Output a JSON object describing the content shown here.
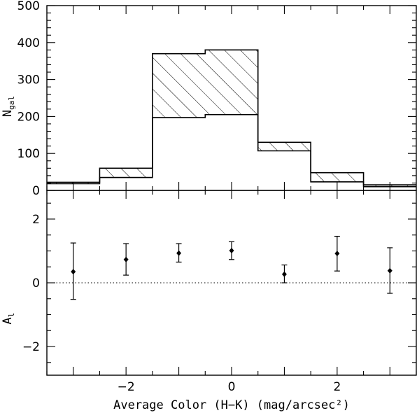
{
  "chart_data": [
    {
      "type": "bar",
      "panel": "top",
      "ylabel": "N",
      "ylabel_sub": "gal",
      "xlim": [
        -3.5,
        3.5
      ],
      "ylim": [
        0,
        500
      ],
      "yticks": [
        0,
        100,
        200,
        300,
        400,
        500
      ],
      "yticks_labeled": true,
      "xticks_labeled": false,
      "series": [
        {
          "style": "open-step",
          "bins": [
            {
              "x0": -3.5,
              "x1": -2.5,
              "value": 18
            },
            {
              "x0": -2.5,
              "x1": -1.5,
              "value": 35
            },
            {
              "x0": -1.5,
              "x1": -0.5,
              "value": 197
            },
            {
              "x0": -0.5,
              "x1": 0.5,
              "value": 205
            },
            {
              "x0": 0.5,
              "x1": 1.5,
              "value": 107
            },
            {
              "x0": 1.5,
              "x1": 2.5,
              "value": 23
            },
            {
              "x0": 2.5,
              "x1": 3.5,
              "value": 10
            }
          ]
        },
        {
          "style": "hatched-step",
          "bins": [
            {
              "x0": -3.5,
              "x1": -2.5,
              "value": 22
            },
            {
              "x0": -2.5,
              "x1": -1.5,
              "value": 60
            },
            {
              "x0": -1.5,
              "x1": -0.5,
              "value": 370
            },
            {
              "x0": -0.5,
              "x1": 0.5,
              "value": 380
            },
            {
              "x0": 0.5,
              "x1": 1.5,
              "value": 130
            },
            {
              "x0": 1.5,
              "x1": 2.5,
              "value": 48
            },
            {
              "x0": 2.5,
              "x1": 3.5,
              "value": 15
            }
          ]
        }
      ]
    },
    {
      "type": "scatter",
      "panel": "bottom",
      "ylabel": "A",
      "ylabel_sub": "l",
      "xlabel": "Average Color (H−K) (mag/arcsec²)",
      "xlim": [
        -3.5,
        3.5
      ],
      "ylim": [
        -2.9,
        2.9
      ],
      "xticks": [
        -2,
        0,
        2
      ],
      "xtick_labels": [
        "−2",
        "0",
        "2"
      ],
      "yticks": [
        -2,
        0,
        2
      ],
      "ytick_labels": [
        "−2",
        "0",
        "2"
      ],
      "reference_line": {
        "y": 0,
        "style": "dotted"
      },
      "points": [
        {
          "x": -3,
          "y": 0.35,
          "ylow": -0.52,
          "yhigh": 1.25
        },
        {
          "x": -2,
          "y": 0.73,
          "ylow": 0.24,
          "yhigh": 1.23
        },
        {
          "x": -1,
          "y": 0.93,
          "ylow": 0.65,
          "yhigh": 1.23
        },
        {
          "x": 0,
          "y": 1.01,
          "ylow": 0.73,
          "yhigh": 1.29
        },
        {
          "x": 1,
          "y": 0.27,
          "ylow": 0.0,
          "yhigh": 0.56
        },
        {
          "x": 2,
          "y": 0.92,
          "ylow": 0.37,
          "yhigh": 1.46
        },
        {
          "x": 3,
          "y": 0.38,
          "ylow": -0.33,
          "yhigh": 1.1
        }
      ]
    }
  ]
}
